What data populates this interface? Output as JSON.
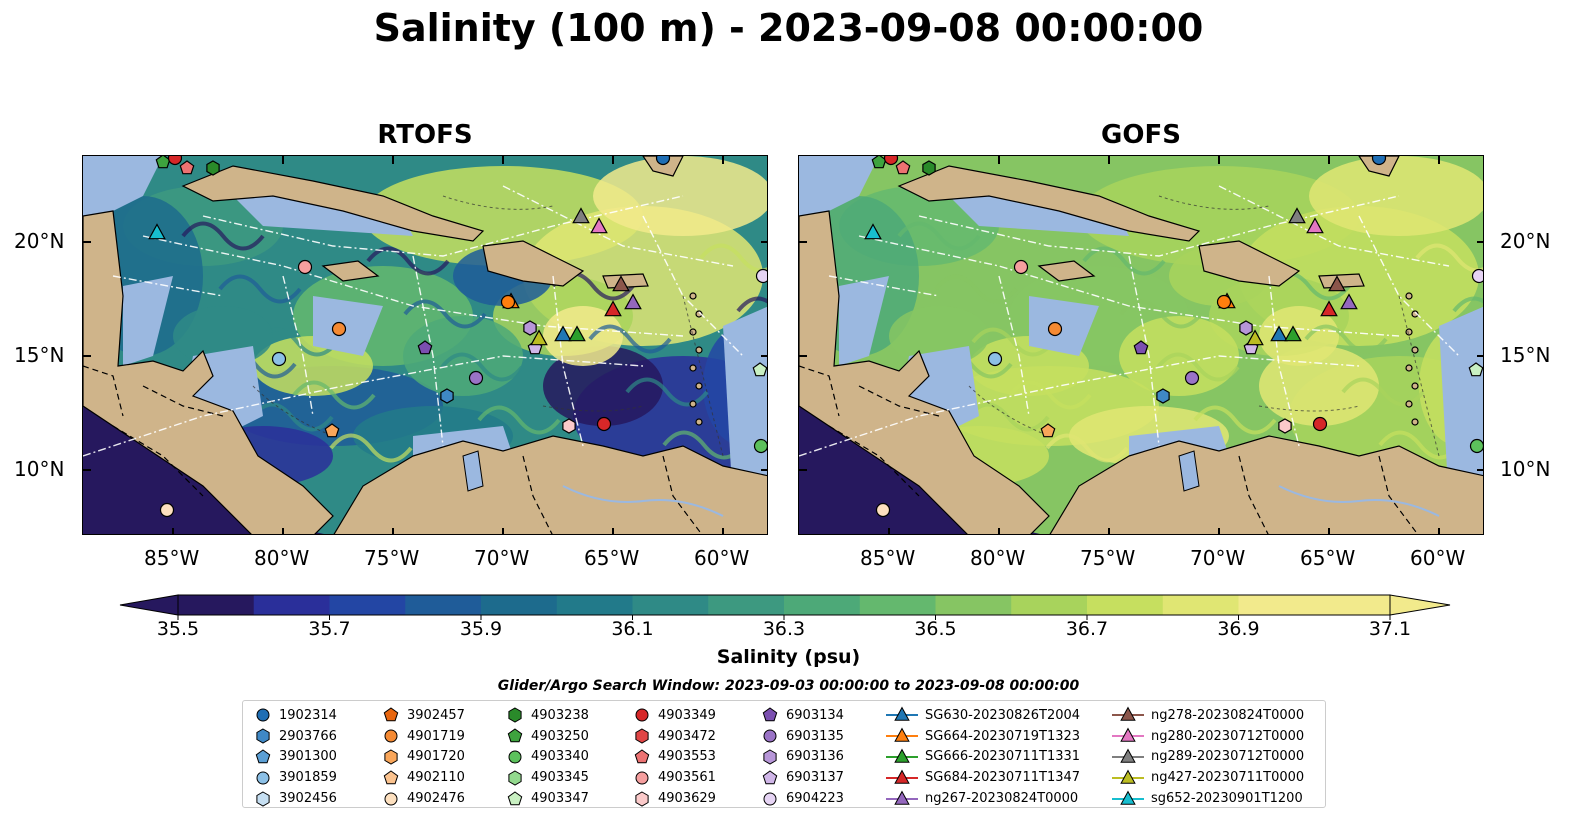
{
  "title": "Salinity (100 m) - 2023-09-08 00:00:00",
  "panels": [
    {
      "title": "RTOFS"
    },
    {
      "title": "GOFS"
    }
  ],
  "lat_labels": [
    "20°N",
    "15°N",
    "10°N"
  ],
  "lon_labels": [
    "85°W",
    "80°W",
    "75°W",
    "70°W",
    "65°W",
    "60°W"
  ],
  "colorbar": {
    "label": "Salinity (psu)",
    "ticks": [
      "35.5",
      "35.7",
      "35.9",
      "36.1",
      "36.3",
      "36.5",
      "36.7",
      "36.9",
      "37.1"
    ],
    "colors": [
      "#26185e",
      "#2a2f9a",
      "#2346a4",
      "#1f5c99",
      "#1d6b8d",
      "#227a8a",
      "#2f8a86",
      "#3d9980",
      "#4da978",
      "#64b86e",
      "#86c563",
      "#a8d35c",
      "#c6df5f",
      "#e0e673",
      "#f2ea8c"
    ]
  },
  "search_window": "Glider/Argo Search Window: 2023-09-03 00:00:00 to 2023-09-08 00:00:00",
  "land_color": "#cfb48a",
  "shallow_color": "#9bb8e0",
  "legend": {
    "columns": [
      [
        {
          "label": "1902314",
          "marker": "circle",
          "color": "#1f6eb4"
        },
        {
          "label": "2903766",
          "marker": "hexagon",
          "color": "#3f88c5"
        },
        {
          "label": "3901300",
          "marker": "pentagon",
          "color": "#5b9fd5"
        },
        {
          "label": "3901859",
          "marker": "circle",
          "color": "#8cc0e6"
        },
        {
          "label": "3902456",
          "marker": "hexagon",
          "color": "#c6dff2"
        }
      ],
      [
        {
          "label": "3902457",
          "marker": "pentagon",
          "color": "#e8660f"
        },
        {
          "label": "4901719",
          "marker": "circle",
          "color": "#f58a33"
        },
        {
          "label": "4901720",
          "marker": "hexagon",
          "color": "#f9a65a"
        },
        {
          "label": "4902110",
          "marker": "pentagon",
          "color": "#fbc38f"
        },
        {
          "label": "4902476",
          "marker": "circle",
          "color": "#fde0bf"
        }
      ],
      [
        {
          "label": "4903238",
          "marker": "hexagon",
          "color": "#2a8a2a"
        },
        {
          "label": "4903250",
          "marker": "pentagon",
          "color": "#3ea33e"
        },
        {
          "label": "4903340",
          "marker": "circle",
          "color": "#5cc15c"
        },
        {
          "label": "4903345",
          "marker": "hexagon",
          "color": "#93d98e"
        },
        {
          "label": "4903347",
          "marker": "pentagon",
          "color": "#c9f0c2"
        }
      ],
      [
        {
          "label": "4903349",
          "marker": "circle",
          "color": "#d62728"
        },
        {
          "label": "4903472",
          "marker": "hexagon",
          "color": "#e04545"
        },
        {
          "label": "4903553",
          "marker": "pentagon",
          "color": "#ec7272"
        },
        {
          "label": "4903561",
          "marker": "circle",
          "color": "#f59f9f"
        },
        {
          "label": "4903629",
          "marker": "hexagon",
          "color": "#fbcaca"
        }
      ],
      [
        {
          "label": "6903134",
          "marker": "pentagon",
          "color": "#7b4fb0"
        },
        {
          "label": "6903135",
          "marker": "circle",
          "color": "#9a73c6"
        },
        {
          "label": "6903136",
          "marker": "hexagon",
          "color": "#b796d8"
        },
        {
          "label": "6903137",
          "marker": "pentagon",
          "color": "#d0b6e8"
        },
        {
          "label": "6904223",
          "marker": "circle",
          "color": "#e6d4f4"
        }
      ],
      [
        {
          "label": "SG630-20230826T2004",
          "marker": "triangle-line",
          "color": "#1f77b4"
        },
        {
          "label": "SG664-20230719T1323",
          "marker": "triangle-line",
          "color": "#ff7f0e"
        },
        {
          "label": "SG666-20230711T1331",
          "marker": "triangle-line",
          "color": "#2ca02c"
        },
        {
          "label": "SG684-20230711T1347",
          "marker": "triangle-line",
          "color": "#d62728"
        },
        {
          "label": "ng267-20230824T0000",
          "marker": "triangle-line",
          "color": "#9467bd"
        }
      ],
      [
        {
          "label": "ng278-20230824T0000",
          "marker": "triangle-line",
          "color": "#8c564b"
        },
        {
          "label": "ng280-20230712T0000",
          "marker": "triangle-line",
          "color": "#e377c2"
        },
        {
          "label": "ng289-20230712T0000",
          "marker": "triangle-line",
          "color": "#7f7f7f"
        },
        {
          "label": "ng427-20230711T0000",
          "marker": "triangle-line",
          "color": "#bcbd22"
        },
        {
          "label": "sg652-20230901T1200",
          "marker": "triangle-line",
          "color": "#17becf"
        }
      ]
    ]
  }
}
